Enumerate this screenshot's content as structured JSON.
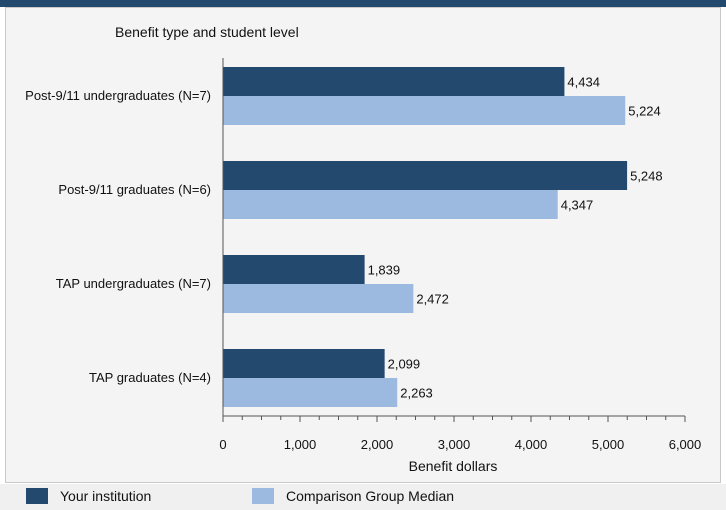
{
  "chart_data": {
    "type": "bar",
    "orientation": "horizontal",
    "title": "Benefit type and student level",
    "xlabel": "Benefit dollars",
    "ylabel": "",
    "xlim": [
      0,
      6000
    ],
    "xticks": [
      "0",
      "1,000",
      "2,000",
      "3,000",
      "4,000",
      "5,000",
      "6,000"
    ],
    "categories": [
      "Post-9/11 undergraduates (N=7)",
      "Post-9/11 graduates (N=6)",
      "TAP undergraduates (N=7)",
      "TAP graduates (N=4)"
    ],
    "series": [
      {
        "name": "Your institution",
        "color": "#23496f",
        "values": [
          4434,
          5248,
          1839,
          2099
        ],
        "labels": [
          "4,434",
          "5,248",
          "1,839",
          "2,099"
        ]
      },
      {
        "name": "Comparison Group Median",
        "color": "#9cbadf",
        "values": [
          5224,
          4347,
          2472,
          2263
        ],
        "labels": [
          "5,224",
          "4,347",
          "2,472",
          "2,263"
        ]
      }
    ],
    "grid": false,
    "legend_position": "bottom"
  }
}
